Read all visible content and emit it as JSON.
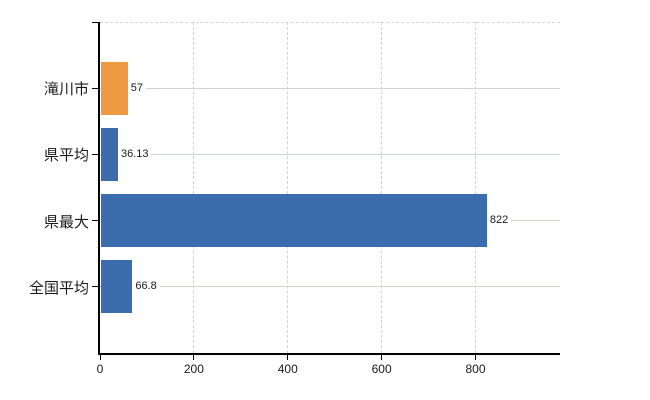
{
  "chart_data": {
    "type": "bar",
    "orientation": "horizontal",
    "title": "",
    "xlabel": "",
    "ylabel": "",
    "categories": [
      "滝川市",
      "県平均",
      "県最大",
      "全国平均"
    ],
    "values": [
      57,
      36.13,
      822,
      66.8
    ],
    "value_labels": [
      "57",
      "36.13",
      "822",
      "66.8"
    ],
    "bar_colors": [
      "#EE9A42",
      "#3B6CAE",
      "#3B6CAE",
      "#3B6CAE"
    ],
    "xlim": [
      0,
      980
    ],
    "x_ticks": [
      0,
      200,
      400,
      600,
      800
    ],
    "x_tick_labels": [
      "0",
      "200",
      "400",
      "600",
      "800"
    ],
    "grid": true,
    "legend": false
  },
  "colors": {
    "background": "#ffffff",
    "axis": "#000000",
    "bar_blue": "#3B6CAE",
    "bar_orange": "#EE9A42",
    "vertical_grid": "#d9cfcf",
    "horizontal_grid": "#ccd6cc",
    "top_grid": "#d8d8d8",
    "text": "#1a1a1a"
  }
}
